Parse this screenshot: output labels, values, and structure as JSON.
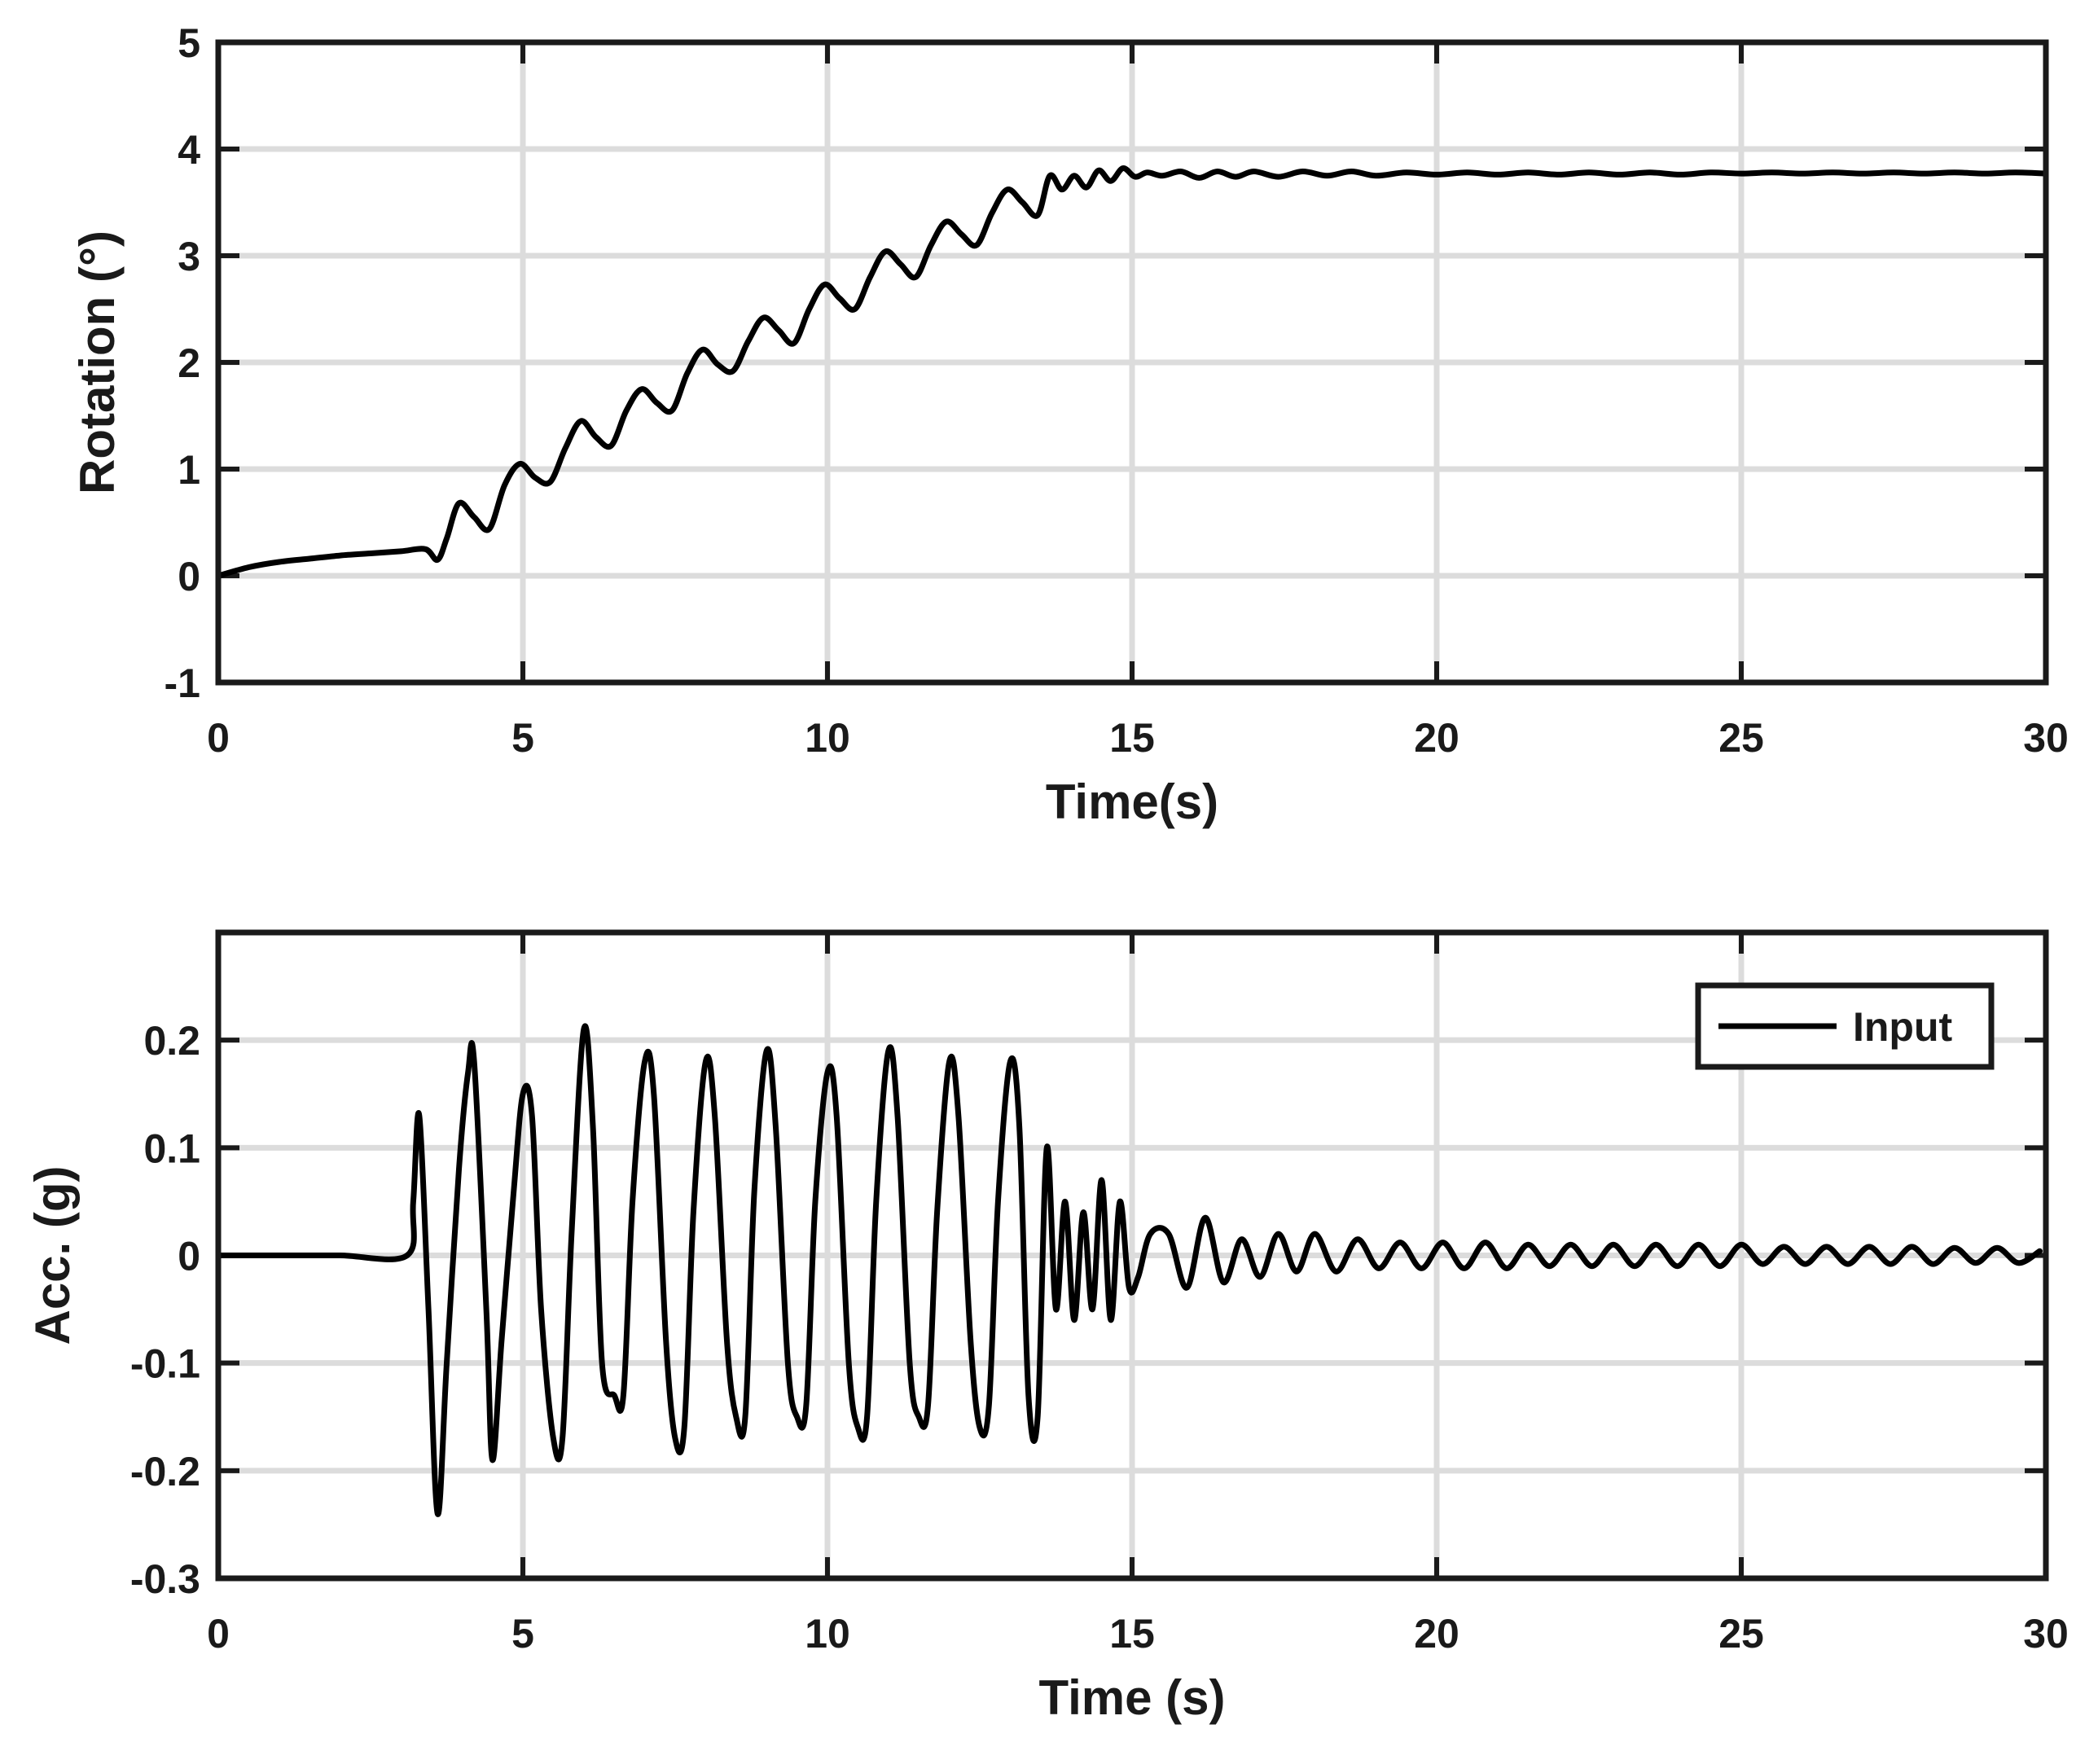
{
  "chart_data": [
    {
      "type": "line",
      "xlabel": "Time(s)",
      "ylabel": "Rotation (°)",
      "xlim": [
        0,
        30
      ],
      "ylim": [
        -1,
        5
      ],
      "xticks": [
        "0",
        "5",
        "10",
        "15",
        "20",
        "25",
        "30"
      ],
      "yticks": [
        "-1",
        "0",
        "1",
        "2",
        "3",
        "4",
        "5"
      ],
      "grid": true,
      "legend": "none",
      "line_color": "#000000",
      "series": [
        {
          "x": [
            0,
            0.5,
            1,
            1.5,
            2,
            2.5,
            3,
            3.4,
            3.6,
            3.75,
            3.95,
            4.2,
            4.45,
            4.7,
            4.95,
            5.2,
            5.45,
            5.7,
            5.95,
            6.2,
            6.45,
            6.7,
            6.95,
            7.2,
            7.45,
            7.7,
            7.95,
            8.2,
            8.45,
            8.7,
            8.95,
            9.2,
            9.45,
            9.7,
            9.95,
            10.2,
            10.45,
            10.7,
            10.95,
            11.2,
            11.45,
            11.7,
            11.95,
            12.2,
            12.45,
            12.7,
            12.95,
            13.2,
            13.45,
            13.65,
            13.85,
            14.05,
            14.25,
            14.45,
            14.65,
            14.85,
            15.05,
            15.25,
            15.5,
            15.8,
            16.1,
            16.4,
            16.7,
            17.0,
            17.4,
            17.8,
            18.2,
            18.6,
            19.0,
            19.5,
            20.0,
            20.5,
            21.0,
            21.5,
            22.0,
            22.5,
            23.0,
            23.5,
            24.0,
            24.5,
            25.0,
            25.5,
            26.0,
            26.5,
            27.0,
            27.5,
            28.0,
            28.5,
            29.0,
            29.5,
            30.0
          ],
          "y": [
            0,
            0.08,
            0.13,
            0.16,
            0.19,
            0.21,
            0.23,
            0.25,
            0.15,
            0.35,
            0.68,
            0.55,
            0.44,
            0.85,
            1.05,
            0.92,
            0.88,
            1.2,
            1.45,
            1.3,
            1.22,
            1.55,
            1.75,
            1.62,
            1.55,
            1.9,
            2.12,
            1.98,
            1.92,
            2.2,
            2.42,
            2.3,
            2.18,
            2.5,
            2.73,
            2.6,
            2.5,
            2.8,
            3.04,
            2.92,
            2.8,
            3.1,
            3.32,
            3.2,
            3.1,
            3.4,
            3.62,
            3.5,
            3.38,
            3.75,
            3.62,
            3.75,
            3.64,
            3.8,
            3.7,
            3.82,
            3.74,
            3.78,
            3.75,
            3.79,
            3.73,
            3.79,
            3.74,
            3.79,
            3.74,
            3.79,
            3.75,
            3.79,
            3.75,
            3.78,
            3.76,
            3.78,
            3.76,
            3.78,
            3.76,
            3.78,
            3.76,
            3.78,
            3.76,
            3.78,
            3.77,
            3.78,
            3.77,
            3.78,
            3.77,
            3.78,
            3.77,
            3.78,
            3.77,
            3.78,
            3.77
          ]
        }
      ]
    },
    {
      "type": "line",
      "xlabel": "Time (s)",
      "ylabel": "Acc. (g)",
      "xlim": [
        0,
        30
      ],
      "ylim": [
        -0.3,
        0.3
      ],
      "xticks": [
        "0",
        "5",
        "10",
        "15",
        "20",
        "25",
        "30"
      ],
      "yticks": [
        "-0.3",
        "-0.2",
        "-0.1",
        "0",
        "0.1",
        "0.2"
      ],
      "grid": true,
      "legend": "top-right",
      "line_color": "#000000",
      "series": [
        {
          "name": "Input",
          "x": [
            0,
            1,
            2,
            3.1,
            3.2,
            3.3,
            3.45,
            3.6,
            3.75,
            3.95,
            4.1,
            4.2,
            4.4,
            4.5,
            4.65,
            4.85,
            5.0,
            5.15,
            5.3,
            5.5,
            5.65,
            5.8,
            6.0,
            6.15,
            6.3,
            6.5,
            6.65,
            6.8,
            7.0,
            7.15,
            7.35,
            7.5,
            7.65,
            7.8,
            8.0,
            8.15,
            8.35,
            8.5,
            8.65,
            8.8,
            9.0,
            9.15,
            9.35,
            9.5,
            9.65,
            9.8,
            10.0,
            10.15,
            10.35,
            10.5,
            10.65,
            10.8,
            11.0,
            11.15,
            11.35,
            11.5,
            11.65,
            11.8,
            12.0,
            12.15,
            12.35,
            12.5,
            12.65,
            12.8,
            13.0,
            13.15,
            13.3,
            13.45,
            13.6,
            13.75,
            13.9,
            14.05,
            14.2,
            14.35,
            14.5,
            14.65,
            14.8,
            14.95,
            15.1,
            15.3,
            15.6,
            15.9,
            16.2,
            16.5,
            16.8,
            17.1,
            17.4,
            17.7,
            18.0,
            18.35,
            18.7,
            19.05,
            19.4,
            19.75,
            20.1,
            20.45,
            20.8,
            21.15,
            21.5,
            21.85,
            22.2,
            22.55,
            22.9,
            23.25,
            23.6,
            23.95,
            24.3,
            24.65,
            25.0,
            25.35,
            25.7,
            26.05,
            26.4,
            26.75,
            27.1,
            27.45,
            27.8,
            28.15,
            28.5,
            28.85,
            29.2,
            29.55,
            29.9
          ],
          "y": [
            0,
            0,
            0,
            0,
            0.05,
            0.13,
            -0.05,
            -0.24,
            -0.1,
            0.08,
            0.17,
            0.18,
            -0.05,
            -0.19,
            -0.08,
            0.06,
            0.15,
            0.13,
            -0.05,
            -0.17,
            -0.17,
            0.02,
            0.21,
            0.12,
            -0.1,
            -0.13,
            -0.13,
            0.05,
            0.18,
            0.15,
            -0.08,
            -0.17,
            -0.16,
            0.04,
            0.18,
            0.13,
            -0.08,
            -0.15,
            -0.15,
            0.06,
            0.19,
            0.12,
            -0.1,
            -0.15,
            -0.14,
            0.05,
            0.17,
            0.13,
            -0.1,
            -0.16,
            -0.15,
            0.05,
            0.19,
            0.13,
            -0.1,
            -0.15,
            -0.14,
            0.04,
            0.18,
            0.13,
            -0.08,
            -0.16,
            -0.14,
            0.05,
            0.18,
            0.12,
            -0.13,
            -0.15,
            0.1,
            -0.05,
            0.05,
            -0.06,
            0.04,
            -0.05,
            0.07,
            -0.06,
            0.05,
            -0.03,
            -0.02,
            0.02,
            0.02,
            -0.03,
            0.035,
            -0.025,
            0.015,
            -0.02,
            0.02,
            -0.015,
            0.02,
            -0.015,
            0.015,
            -0.012,
            0.012,
            -0.012,
            0.012,
            -0.012,
            0.012,
            -0.012,
            0.01,
            -0.01,
            0.01,
            -0.01,
            0.01,
            -0.01,
            0.01,
            -0.01,
            0.01,
            -0.01,
            0.01,
            -0.008,
            0.008,
            -0.008,
            0.008,
            -0.008,
            0.008,
            -0.008,
            0.008,
            -0.008,
            0.007,
            -0.007,
            0.007,
            -0.007,
            0.004
          ]
        }
      ]
    }
  ]
}
